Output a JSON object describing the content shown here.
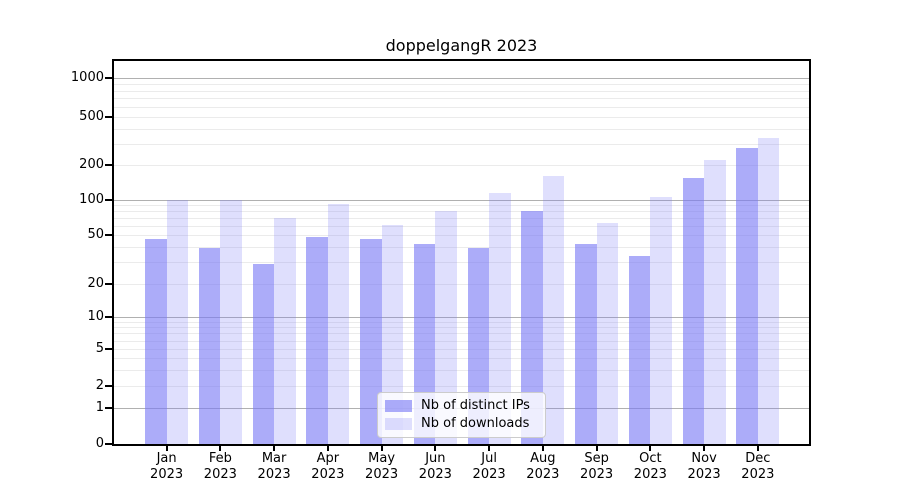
{
  "chart_data": {
    "type": "bar",
    "title": "doppelgangR 2023",
    "categories": [
      "Jan 2023",
      "Feb 2023",
      "Mar 2023",
      "Apr 2023",
      "May 2023",
      "Jun 2023",
      "Jul 2023",
      "Aug 2023",
      "Sep 2023",
      "Oct 2023",
      "Nov 2023",
      "Dec 2023"
    ],
    "series": [
      {
        "name": "Nb of distinct IPs",
        "color": "rgba(121,121,245,0.62)",
        "values": [
          46,
          39,
          29,
          48,
          46,
          42,
          39,
          81,
          42,
          34,
          155,
          275
        ]
      },
      {
        "name": "Nb of downloads",
        "color": "rgba(121,121,245,0.24)",
        "values": [
          100,
          100,
          70,
          93,
          61,
          80,
          115,
          160,
          63,
          107,
          220,
          335
        ]
      }
    ],
    "xlabel": "",
    "ylabel": "",
    "yscale": "symlog",
    "yticks": [
      0,
      1,
      2,
      5,
      10,
      20,
      50,
      100,
      200,
      500,
      1000
    ],
    "ylim": [
      0,
      1400
    ],
    "grid": {
      "orientation": "horizontal",
      "major_color": "#b0b0b0",
      "minor_color": "#b0b0b0",
      "minor_alpha": 0.25
    },
    "legend_position": "lower center"
  },
  "colors": {
    "bar_base": "#7979f5",
    "spine": "#000000",
    "background": "#ffffff",
    "grid_major": "#b0b0b0"
  }
}
